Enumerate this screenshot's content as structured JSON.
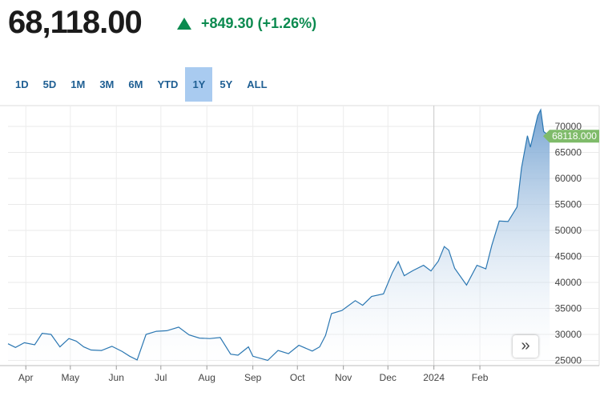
{
  "quote": {
    "price": "68,118.00",
    "change": "+849.30 (+1.26%)",
    "direction": "up",
    "color": "#0b8a4f"
  },
  "ranges": [
    "1D",
    "5D",
    "1M",
    "3M",
    "6M",
    "YTD",
    "1Y",
    "5Y",
    "ALL"
  ],
  "active_range": "1Y",
  "scroll_icon": "double-chevron-right-icon",
  "chart_data": {
    "type": "area",
    "x_ticks": [
      "Apr",
      "May",
      "Jun",
      "Jul",
      "Aug",
      "Sep",
      "Oct",
      "Nov",
      "Dec",
      "2024",
      "Feb"
    ],
    "y_ticks": [
      25000,
      30000,
      35000,
      40000,
      45000,
      50000,
      55000,
      60000,
      65000,
      70000
    ],
    "ylim": [
      24000,
      74000
    ],
    "x_range": [
      "2023-03-20",
      "2024-03-20"
    ],
    "last_value_label": "68118.000",
    "line_color": "#2b77b2",
    "label_color": "#7fbb6a",
    "grid": true,
    "series": [
      {
        "values": [
          [
            "2023-03-20",
            28200
          ],
          [
            "2023-03-25",
            27500
          ],
          [
            "2023-03-31",
            28400
          ],
          [
            "2023-04-07",
            28000
          ],
          [
            "2023-04-12",
            30200
          ],
          [
            "2023-04-18",
            30000
          ],
          [
            "2023-04-24",
            27600
          ],
          [
            "2023-04-30",
            29200
          ],
          [
            "2023-05-05",
            28700
          ],
          [
            "2023-05-10",
            27600
          ],
          [
            "2023-05-15",
            27000
          ],
          [
            "2023-05-22",
            26900
          ],
          [
            "2023-05-29",
            27700
          ],
          [
            "2023-06-05",
            26700
          ],
          [
            "2023-06-10",
            25800
          ],
          [
            "2023-06-15",
            25100
          ],
          [
            "2023-06-21",
            30000
          ],
          [
            "2023-06-28",
            30600
          ],
          [
            "2023-07-05",
            30700
          ],
          [
            "2023-07-13",
            31400
          ],
          [
            "2023-07-20",
            29900
          ],
          [
            "2023-07-27",
            29300
          ],
          [
            "2023-08-03",
            29200
          ],
          [
            "2023-08-10",
            29400
          ],
          [
            "2023-08-17",
            26200
          ],
          [
            "2023-08-22",
            26000
          ],
          [
            "2023-08-29",
            27600
          ],
          [
            "2023-09-01",
            25800
          ],
          [
            "2023-09-11",
            25000
          ],
          [
            "2023-09-18",
            26900
          ],
          [
            "2023-09-25",
            26300
          ],
          [
            "2023-10-02",
            27900
          ],
          [
            "2023-10-11",
            26800
          ],
          [
            "2023-10-16",
            27600
          ],
          [
            "2023-10-20",
            29800
          ],
          [
            "2023-10-24",
            34000
          ],
          [
            "2023-10-31",
            34600
          ],
          [
            "2023-11-09",
            36500
          ],
          [
            "2023-11-14",
            35600
          ],
          [
            "2023-11-20",
            37300
          ],
          [
            "2023-11-28",
            37800
          ],
          [
            "2023-12-04",
            41900
          ],
          [
            "2023-12-08",
            44000
          ],
          [
            "2023-12-12",
            41300
          ],
          [
            "2023-12-18",
            42300
          ],
          [
            "2023-12-25",
            43300
          ],
          [
            "2023-12-30",
            42200
          ],
          [
            "2024-01-04",
            44100
          ],
          [
            "2024-01-08",
            46900
          ],
          [
            "2024-01-11",
            46200
          ],
          [
            "2024-01-15",
            42700
          ],
          [
            "2024-01-23",
            39500
          ],
          [
            "2024-01-30",
            43300
          ],
          [
            "2024-02-05",
            42600
          ],
          [
            "2024-02-09",
            47100
          ],
          [
            "2024-02-14",
            51800
          ],
          [
            "2024-02-20",
            51700
          ],
          [
            "2024-02-26",
            54500
          ],
          [
            "2024-02-29",
            62000
          ],
          [
            "2024-03-04",
            68200
          ],
          [
            "2024-03-06",
            66000
          ],
          [
            "2024-03-11",
            72100
          ],
          [
            "2024-03-13",
            73200
          ],
          [
            "2024-03-15",
            69000
          ],
          [
            "2024-03-19",
            68118
          ]
        ]
      }
    ]
  }
}
